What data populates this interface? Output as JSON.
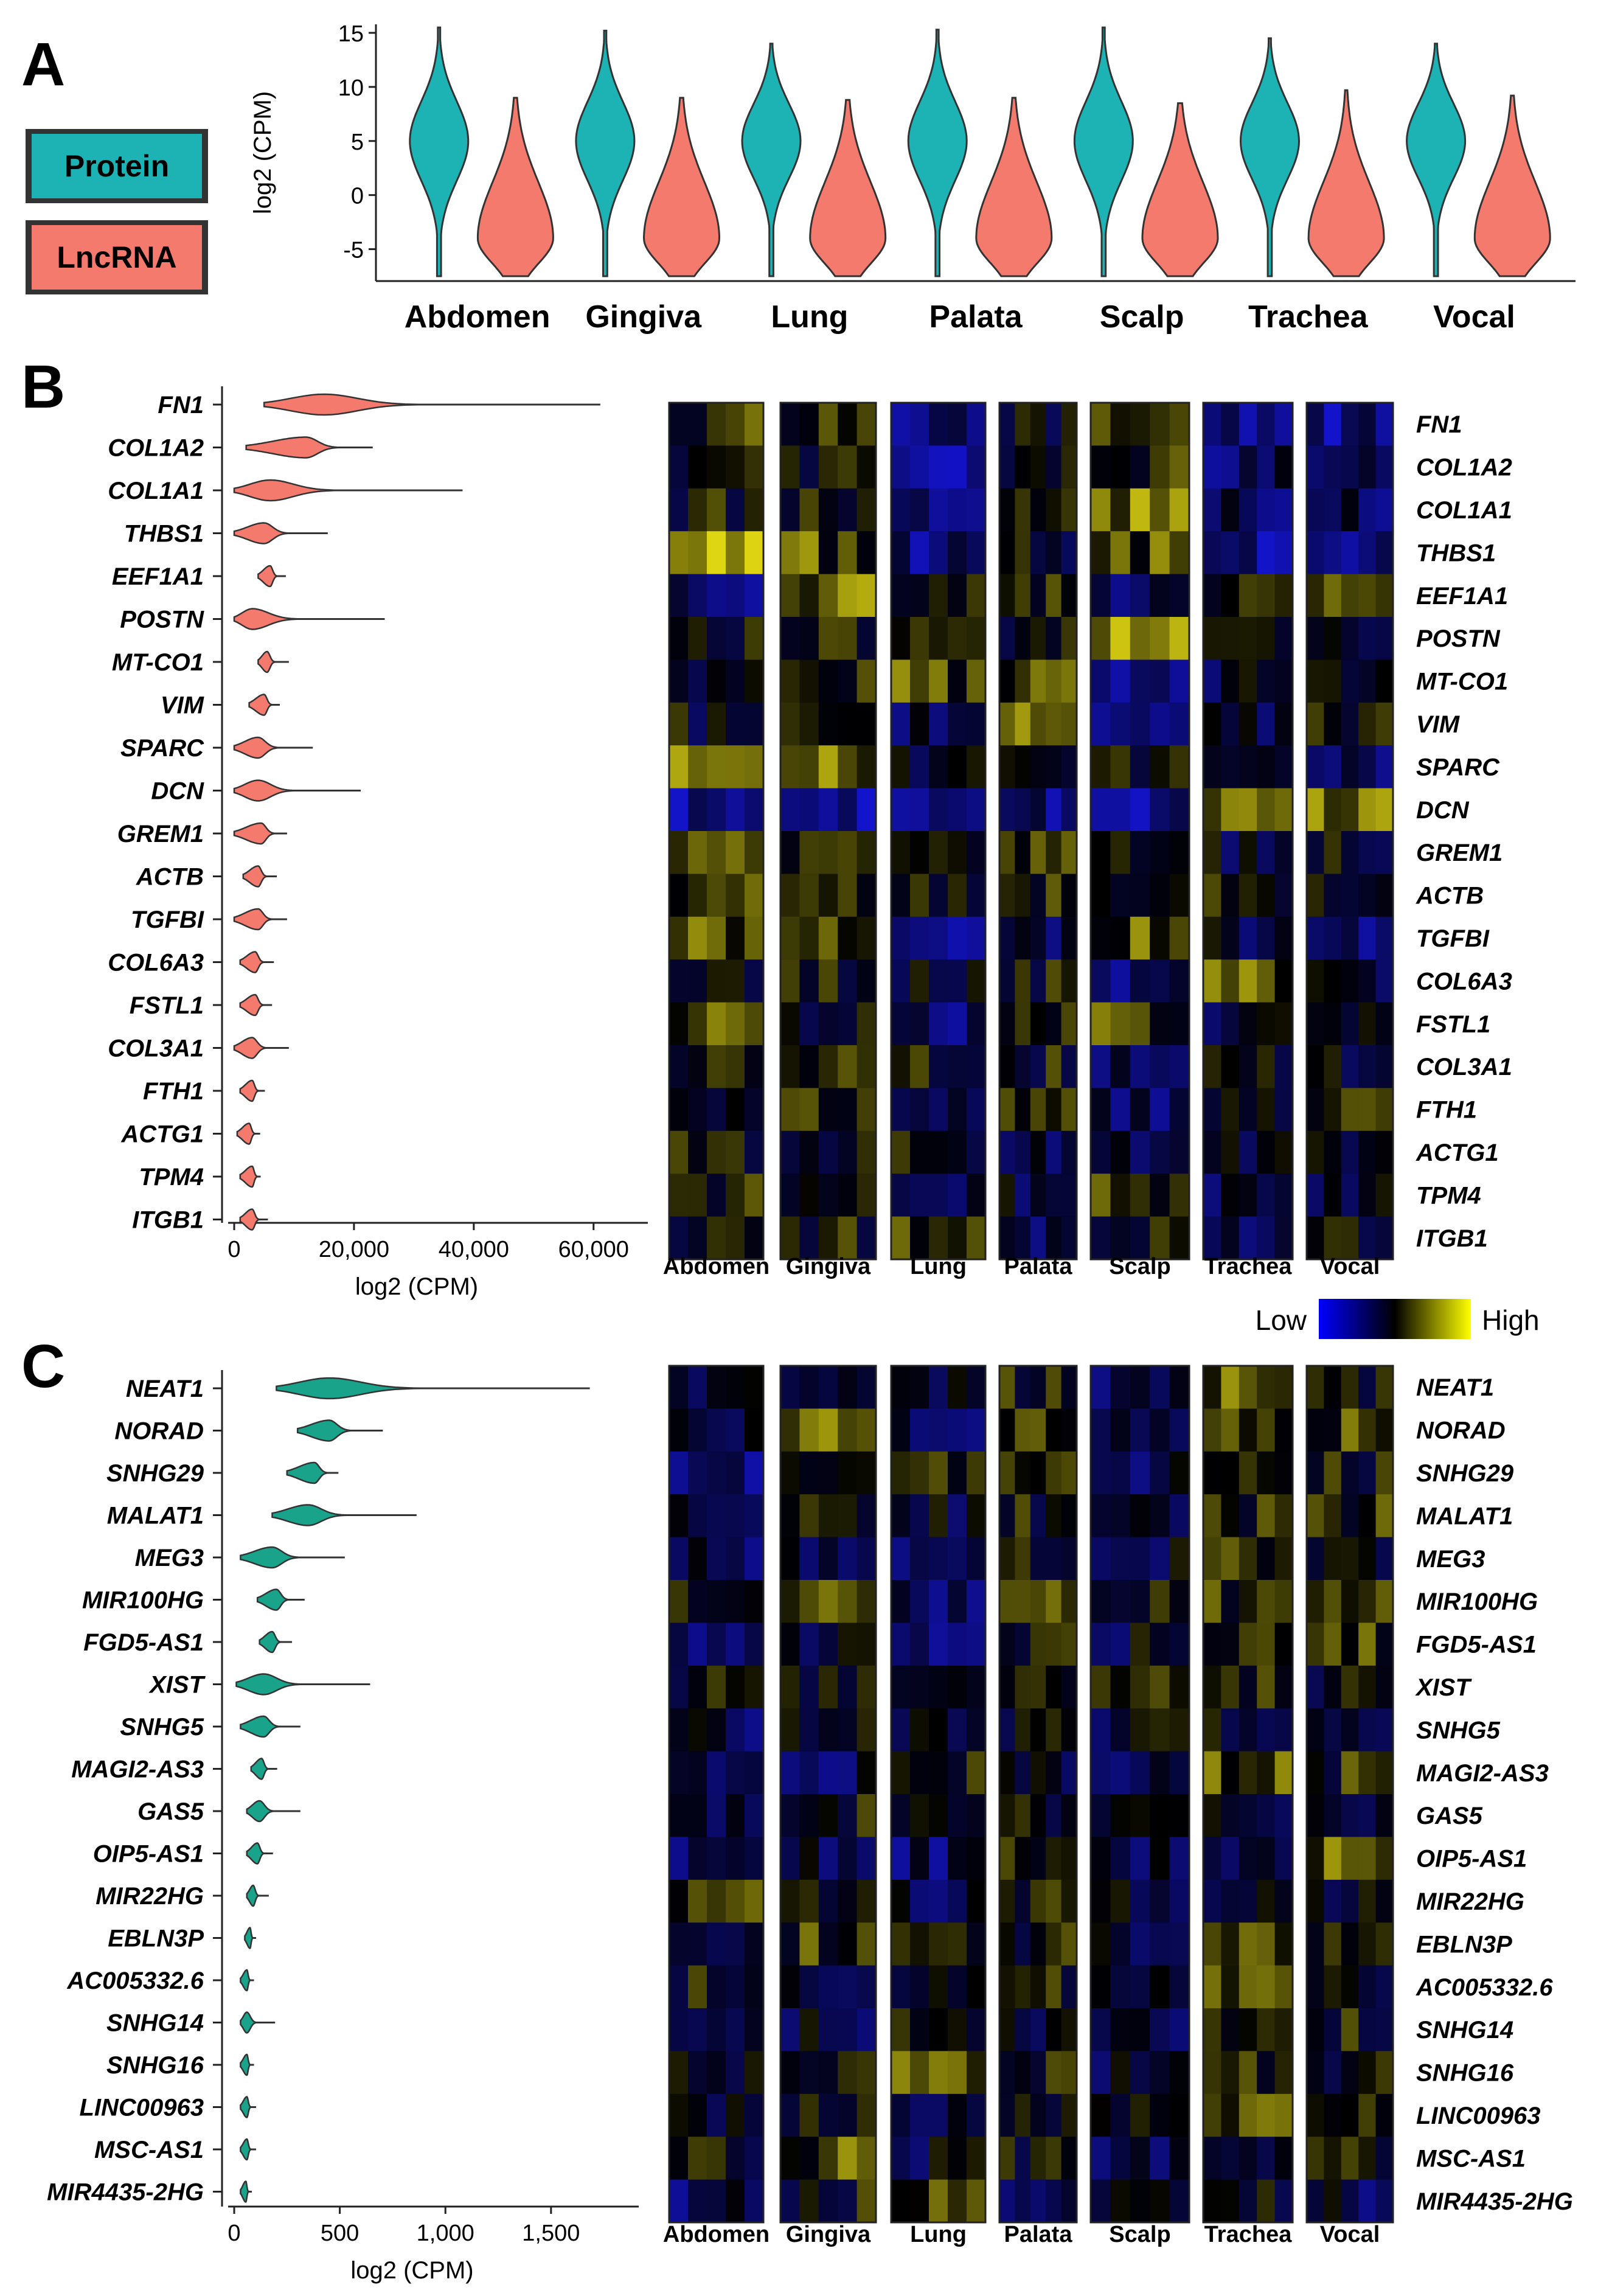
{
  "chart_data": [
    {
      "panel": "A",
      "type": "violin",
      "ylabel": "log2 (CPM)",
      "ylim": [
        -7.5,
        15
      ],
      "yticks": [
        -5,
        0,
        5,
        10,
        15
      ],
      "legend": [
        {
          "name": "Protein",
          "color": "#1db3b5"
        },
        {
          "name": "LncRNA",
          "color": "#f57a6e"
        }
      ],
      "legend_placement": "left",
      "categories": [
        "Abdomen",
        "Gingiva",
        "Lung",
        "Palata",
        "Scalp",
        "Trachea",
        "Vocal"
      ],
      "series": [
        {
          "name": "Protein",
          "min": [
            -7.5,
            -7.5,
            -7.5,
            -7.5,
            -7.5,
            -7.5,
            -7.5
          ],
          "max": [
            15.5,
            15.2,
            14,
            15.3,
            15.5,
            14.5,
            14
          ],
          "mode": [
            5,
            5,
            5,
            5,
            5,
            5,
            5
          ]
        },
        {
          "name": "LncRNA",
          "min": [
            -7.5,
            -7.5,
            -7.5,
            -7.5,
            -7.5,
            -7.5,
            -7.5
          ],
          "max": [
            9,
            9,
            8.8,
            9,
            8.5,
            9.7,
            9.2
          ],
          "mode": [
            -4,
            -4,
            -4,
            -4,
            -4,
            -4,
            -4
          ]
        }
      ]
    },
    {
      "panel": "B",
      "type": "violin",
      "orientation": "horizontal",
      "xlabel": "log2 (CPM)",
      "xlim": [
        0,
        65000
      ],
      "xticks": [
        "0",
        "20,000",
        "40,000",
        "60,000"
      ],
      "xtick_values": [
        0,
        20000,
        40000,
        60000
      ],
      "color": "#f57a6e",
      "categories": [
        "FN1",
        "COL1A2",
        "COL1A1",
        "THBS1",
        "EEF1A1",
        "POSTN",
        "MT-CO1",
        "VIM",
        "SPARC",
        "DCN",
        "GREM1",
        "ACTB",
        "TGFBI",
        "COL6A3",
        "FSTL1",
        "COL3A1",
        "FTH1",
        "ACTG1",
        "TPM4",
        "ITGB1"
      ],
      "min": [
        5000,
        2000,
        0,
        0,
        4000,
        0,
        4000,
        2500,
        0,
        0,
        0,
        1500,
        0,
        1000,
        1000,
        0,
        1000,
        500,
        1000,
        1000
      ],
      "max": [
        61000,
        23000,
        38000,
        15500,
        8500,
        25000,
        9000,
        7500,
        13000,
        21000,
        8700,
        7000,
        8700,
        6500,
        6200,
        9000,
        5000,
        4200,
        4300,
        5500
      ],
      "mode": [
        15000,
        12000,
        6000,
        5000,
        6000,
        3000,
        5500,
        5000,
        4000,
        4000,
        4500,
        4000,
        4000,
        3500,
        3500,
        3000,
        3000,
        2500,
        3000,
        3000
      ]
    },
    {
      "panel": "C",
      "type": "violin",
      "orientation": "horizontal",
      "xlabel": "log2 (CPM)",
      "xlim": [
        0,
        1800
      ],
      "xticks": [
        "0",
        "500",
        "1,000",
        "1,500"
      ],
      "xtick_values": [
        0,
        500,
        1000,
        1500
      ],
      "color": "#18a38a",
      "categories": [
        "NEAT1",
        "NORAD",
        "SNHG29",
        "MALAT1",
        "MEG3",
        "MIR100HG",
        "FGD5-AS1",
        "XIST",
        "SNHG5",
        "MAGI2-AS3",
        "GAS5",
        "OIP5-AS1",
        "MIR22HG",
        "EBLN3P",
        "AC005332.6",
        "SNHG14",
        "SNHG16",
        "LINC00963",
        "MSC-AS1",
        "MIR4435-2HG"
      ],
      "min": [
        200,
        300,
        250,
        180,
        30,
        110,
        120,
        10,
        30,
        80,
        60,
        60,
        60,
        50,
        30,
        30,
        30,
        30,
        30,
        30
      ],
      "max": [
        1680,
        700,
        490,
        860,
        520,
        330,
        270,
        640,
        310,
        200,
        310,
        180,
        160,
        100,
        90,
        190,
        90,
        100,
        100,
        80
      ],
      "mode": [
        450,
        450,
        380,
        350,
        180,
        200,
        180,
        140,
        140,
        130,
        120,
        110,
        90,
        75,
        60,
        60,
        60,
        60,
        60,
        55
      ]
    },
    {
      "panel": "B-heatmap",
      "type": "heatmap",
      "rows": [
        "FN1",
        "COL1A2",
        "COL1A1",
        "THBS1",
        "EEF1A1",
        "POSTN",
        "MT-CO1",
        "VIM",
        "SPARC",
        "DCN",
        "GREM1",
        "ACTB",
        "TGFBI",
        "COL6A3",
        "FSTL1",
        "COL3A1",
        "FTH1",
        "ACTG1",
        "TPM4",
        "ITGB1"
      ],
      "groups": [
        "Abdomen",
        "Gingiva",
        "Lung",
        "Palata",
        "Scalp",
        "Trachea",
        "Vocal"
      ],
      "samples_per_group": 5,
      "scale": "relative expression, -1 (Low) to 1 (High)",
      "group_baseline": [
        [
          0.2,
          0.1,
          -0.6,
          -0.1,
          0.3,
          -0.7,
          -0.6
        ],
        [
          0.0,
          0.0,
          -0.7,
          0.0,
          0.1,
          -0.4,
          -0.5
        ],
        [
          0.0,
          0.0,
          -0.6,
          0.0,
          0.5,
          -0.4,
          -0.4
        ],
        [
          0.6,
          0.3,
          -0.6,
          -0.1,
          0.3,
          -0.6,
          -0.7
        ],
        [
          -0.6,
          0.4,
          0.0,
          0.0,
          -0.3,
          0.0,
          0.2
        ],
        [
          0.0,
          0.0,
          0.0,
          0.0,
          0.5,
          -0.1,
          -0.1
        ],
        [
          0.0,
          0.0,
          0.3,
          0.2,
          -0.5,
          -0.2,
          0.0
        ],
        [
          -0.1,
          0.0,
          -0.3,
          0.4,
          -0.5,
          -0.2,
          0.1
        ],
        [
          0.4,
          0.4,
          -0.2,
          -0.2,
          -0.1,
          -0.4,
          -0.5
        ],
        [
          -0.7,
          -0.7,
          -0.5,
          -0.5,
          -0.6,
          0.4,
          0.5
        ],
        [
          0.3,
          0.2,
          0.0,
          0.3,
          -0.2,
          -0.2,
          -0.1
        ],
        [
          0.2,
          0.2,
          0.0,
          0.2,
          -0.1,
          0.0,
          -0.1
        ],
        [
          0.3,
          0.4,
          -0.5,
          -0.3,
          0.3,
          -0.2,
          -0.4
        ],
        [
          -0.1,
          0.0,
          -0.2,
          0.0,
          -0.4,
          0.3,
          -0.3
        ],
        [
          0.3,
          0.0,
          -0.5,
          0.1,
          0.2,
          -0.3,
          -0.2
        ],
        [
          0.0,
          0.3,
          0.0,
          0.0,
          -0.4,
          -0.1,
          -0.2
        ],
        [
          -0.3,
          0.2,
          -0.3,
          0.0,
          -0.5,
          0.0,
          0.1
        ],
        [
          0.0,
          0.0,
          0.0,
          -0.2,
          -0.2,
          -0.2,
          -0.1
        ],
        [
          0.1,
          0.0,
          -0.3,
          -0.2,
          0.1,
          -0.3,
          -0.2
        ],
        [
          0.0,
          0.0,
          0.2,
          -0.4,
          0.0,
          -0.3,
          -0.1
        ]
      ]
    },
    {
      "panel": "C-heatmap",
      "type": "heatmap",
      "rows": [
        "NEAT1",
        "NORAD",
        "SNHG29",
        "MALAT1",
        "MEG3",
        "MIR100HG",
        "FGD5-AS1",
        "XIST",
        "SNHG5",
        "MAGI2-AS3",
        "GAS5",
        "OIP5-AS1",
        "MIR22HG",
        "EBLN3P",
        "AC005332.6",
        "SNHG14",
        "SNHG16",
        "LINC00963",
        "MSC-AS1",
        "MIR4435-2HG"
      ],
      "groups": [
        "Abdomen",
        "Gingiva",
        "Lung",
        "Palata",
        "Scalp",
        "Trachea",
        "Vocal"
      ],
      "samples_per_group": 5,
      "scale": "relative expression, -1 (Low) to 1 (High)",
      "group_baseline": [
        [
          -0.2,
          0.0,
          -0.3,
          0.0,
          -0.3,
          0.4,
          0.0
        ],
        [
          -0.2,
          0.4,
          -0.3,
          0.2,
          -0.4,
          0.1,
          0.2
        ],
        [
          -0.5,
          0.2,
          0.1,
          0.2,
          -0.3,
          0.2,
          0.0
        ],
        [
          -0.2,
          0.0,
          -0.2,
          0.0,
          -0.3,
          0.1,
          0.1
        ],
        [
          -0.4,
          -0.3,
          -0.3,
          0.1,
          -0.2,
          0.2,
          -0.1
        ],
        [
          0.0,
          0.2,
          -0.4,
          0.2,
          -0.1,
          0.2,
          0.1
        ],
        [
          -0.5,
          -0.2,
          -0.4,
          0.1,
          -0.2,
          0.1,
          0.2
        ],
        [
          0.0,
          0.0,
          -0.1,
          0.0,
          0.0,
          0.0,
          -0.1
        ],
        [
          -0.3,
          0.0,
          -0.3,
          -0.1,
          -0.2,
          -0.2,
          -0.2
        ],
        [
          -0.3,
          -0.3,
          0.1,
          -0.3,
          -0.4,
          0.3,
          0.1
        ],
        [
          -0.3,
          0.0,
          0.1,
          0.0,
          -0.2,
          -0.1,
          -0.2
        ],
        [
          -0.5,
          -0.3,
          -0.4,
          0.1,
          -0.3,
          -0.3,
          0.3
        ],
        [
          0.3,
          0.0,
          -0.3,
          0.1,
          -0.2,
          -0.2,
          -0.1
        ],
        [
          -0.4,
          0.2,
          0.0,
          0.0,
          -0.2,
          0.2,
          -0.1
        ],
        [
          0.0,
          -0.1,
          -0.2,
          0.0,
          -0.1,
          0.2,
          0.0
        ],
        [
          -0.3,
          -0.2,
          0.0,
          -0.2,
          -0.3,
          0.1,
          0.0
        ],
        [
          -0.2,
          0.1,
          0.3,
          0.0,
          -0.3,
          0.0,
          -0.1
        ],
        [
          -0.1,
          0.0,
          -0.2,
          -0.1,
          -0.2,
          0.2,
          0.3
        ],
        [
          -0.1,
          0.3,
          -0.2,
          0.0,
          -0.3,
          -0.2,
          0.0
        ],
        [
          -0.4,
          0.0,
          0.2,
          -0.2,
          0.0,
          -0.1,
          -0.3
        ]
      ]
    }
  ],
  "panel_letters": [
    "A",
    "B",
    "C"
  ],
  "colorbar": {
    "low": "Low",
    "high": "High",
    "colors": [
      "#0000ff",
      "#000000",
      "#ffff00"
    ]
  },
  "colors": {
    "protein": "#1db3b5",
    "lncrna": "#f57a6e",
    "lncrna_gene": "#18a38a"
  }
}
